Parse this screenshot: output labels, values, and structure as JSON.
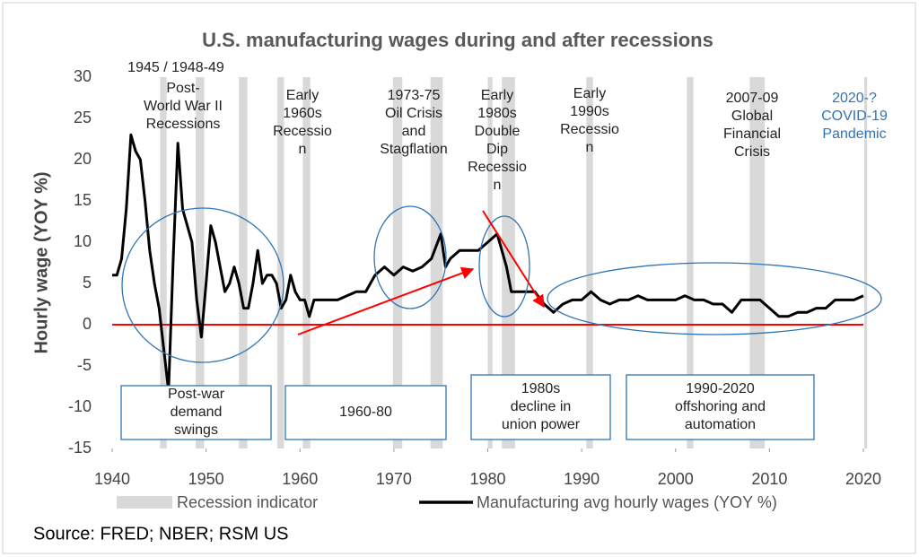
{
  "chart_data": {
    "type": "line",
    "title": "U.S. manufacturing wages during and after recessions",
    "y_label": "Hourly wage (YOY %)",
    "source": "Source: FRED; NBER; RSM US",
    "xlim": [
      1940,
      2020
    ],
    "xticks": [
      1940,
      1950,
      1960,
      1970,
      1980,
      1990,
      2000,
      2010,
      2020
    ],
    "ylim": [
      -15,
      30
    ],
    "yticks": [
      -15,
      -10,
      -5,
      0,
      5,
      10,
      15,
      20,
      25,
      30
    ],
    "recessions": {
      "name": "Recession indicator",
      "color": "#d9d9d9",
      "periods": [
        [
          1945.1,
          1945.8
        ],
        [
          1948.9,
          1949.8
        ],
        [
          1953.5,
          1954.4
        ],
        [
          1957.6,
          1958.3
        ],
        [
          1960.3,
          1961.1
        ],
        [
          1969.9,
          1970.9
        ],
        [
          1973.9,
          1975.2
        ],
        [
          1980.0,
          1980.5
        ],
        [
          1981.5,
          1982.9
        ],
        [
          1990.5,
          1991.2
        ],
        [
          2001.2,
          2001.9
        ],
        [
          2007.9,
          2009.5
        ],
        [
          2020.1,
          2020.4
        ]
      ]
    },
    "series": [
      {
        "name": "Manufacturing avg hourly wages (YOY %)",
        "color": "#000000",
        "x": [
          1940,
          1940.5,
          1941,
          1941.5,
          1942,
          1942.5,
          1943,
          1943.5,
          1944,
          1944.5,
          1945,
          1945.5,
          1946,
          1946.5,
          1947,
          1947.5,
          1948,
          1948.5,
          1949,
          1949.5,
          1950,
          1950.5,
          1951,
          1951.5,
          1952,
          1952.5,
          1953,
          1953.5,
          1954,
          1954.5,
          1955,
          1955.5,
          1956,
          1956.5,
          1957,
          1957.5,
          1958,
          1958.5,
          1959,
          1959.5,
          1960,
          1960.5,
          1961,
          1961.5,
          1962,
          1963,
          1964,
          1965,
          1966,
          1967,
          1968,
          1969,
          1970,
          1971,
          1972,
          1973,
          1974,
          1975,
          1975.5,
          1976,
          1977,
          1978,
          1979,
          1980,
          1981,
          1981.5,
          1982,
          1982.5,
          1983,
          1984,
          1985,
          1986,
          1987,
          1988,
          1989,
          1990,
          1991,
          1992,
          1993,
          1994,
          1995,
          1996,
          1997,
          1998,
          1999,
          2000,
          2001,
          2002,
          2003,
          2004,
          2005,
          2006,
          2007,
          2008,
          2009,
          2010,
          2011,
          2012,
          2013,
          2014,
          2015,
          2016,
          2017,
          2018,
          2019,
          2020
        ],
        "values": [
          6,
          6,
          8,
          14,
          23,
          21,
          20,
          15,
          9,
          5,
          2,
          -3,
          -8,
          8,
          22,
          14,
          12,
          10,
          3,
          -1.5,
          5,
          12,
          10,
          7,
          4,
          5,
          7,
          5,
          2,
          2,
          5,
          9,
          5,
          6,
          6,
          5,
          2,
          3,
          6,
          4,
          3,
          3,
          1,
          3,
          3,
          3,
          3,
          3.5,
          4,
          4,
          6,
          7,
          6,
          7,
          6.5,
          7,
          8,
          11,
          7,
          8,
          9,
          9,
          9,
          10,
          11,
          9,
          7,
          4,
          4,
          4,
          4,
          2.5,
          1.5,
          2.5,
          3,
          3,
          4,
          3,
          2.5,
          3,
          3,
          3.5,
          3,
          3,
          3,
          3,
          3.5,
          3,
          3,
          2.5,
          2.5,
          1.5,
          3,
          3,
          3,
          2,
          1,
          1,
          1.5,
          1.5,
          2,
          2,
          3,
          3,
          3,
          3.5
        ]
      }
    ],
    "annotations": [
      {
        "lines": [
          "1945 / 1948-49"
        ]
      },
      {
        "lines": [
          "Post-",
          "World War II",
          "Recessions"
        ]
      },
      {
        "lines": [
          "Early",
          "1960s",
          "Recessio",
          "n"
        ]
      },
      {
        "lines": [
          "1973-75",
          "Oil Crisis",
          "and",
          "Stagflation"
        ]
      },
      {
        "lines": [
          "Early",
          "1980s",
          "Double",
          "Dip",
          "Recessio",
          "n"
        ]
      },
      {
        "lines": [
          "Early",
          "1990s",
          "Recessio",
          "n"
        ]
      },
      {
        "lines": [
          "2007-09",
          "Global",
          "Financial",
          "Crisis"
        ]
      },
      {
        "lines": [
          "2020-?",
          "COVID-19",
          "Pandemic"
        ],
        "color": "#2e75b6"
      }
    ],
    "boxes": [
      {
        "lines": [
          "Post-war",
          "demand",
          "swings"
        ]
      },
      {
        "lines": [
          "1960-80"
        ]
      },
      {
        "lines": [
          "1980s",
          "decline in",
          "union power"
        ]
      },
      {
        "lines": [
          "1990-2020",
          "offshoring and",
          "automation"
        ]
      }
    ]
  }
}
